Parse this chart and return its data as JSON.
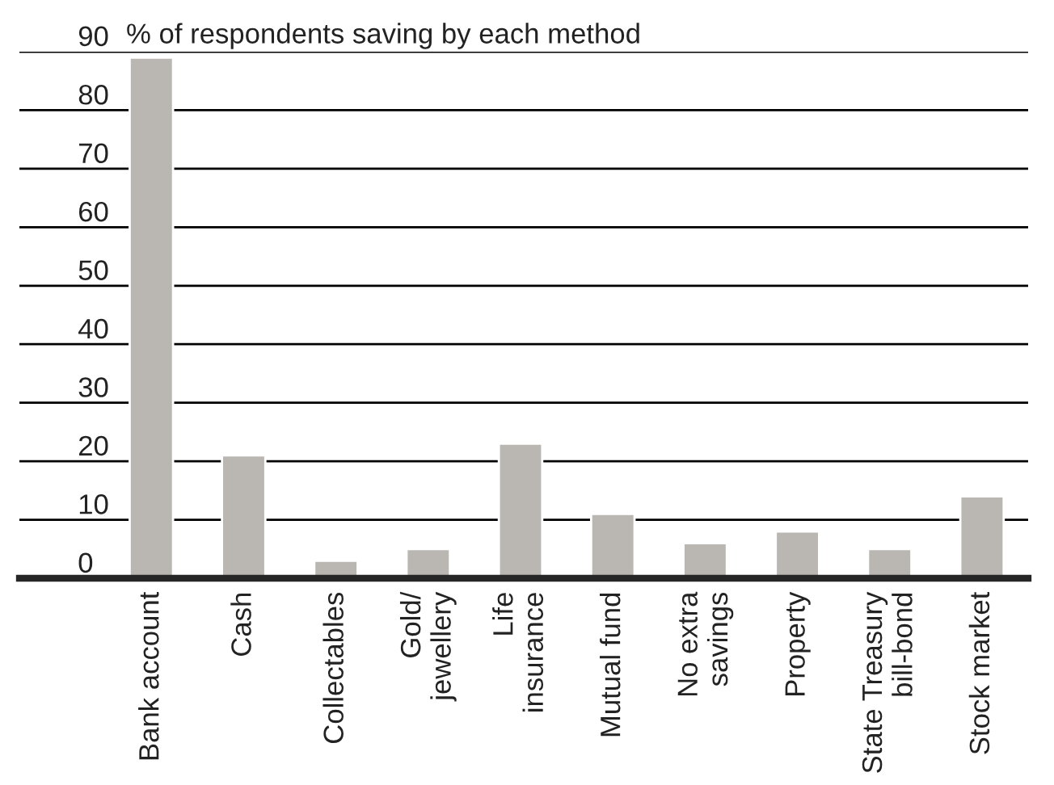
{
  "chart_data": {
    "type": "bar",
    "title": "% of respondents saving by each method",
    "categories": [
      "Bank account",
      "Cash",
      "Collectables",
      "Gold/\njewellery",
      "Life\ninsurance",
      "Mutual fund",
      "No extra\nsavings",
      "Property",
      "State Treasury\nbill-bond",
      "Stock market"
    ],
    "values": [
      89,
      21,
      3,
      5,
      23,
      11,
      6,
      8,
      5,
      14
    ],
    "color": "#bab6b2",
    "ylim": [
      0,
      90
    ],
    "yticks": [
      0,
      10,
      20,
      30,
      40,
      50,
      60,
      70,
      80,
      90
    ],
    "grid": "y"
  }
}
